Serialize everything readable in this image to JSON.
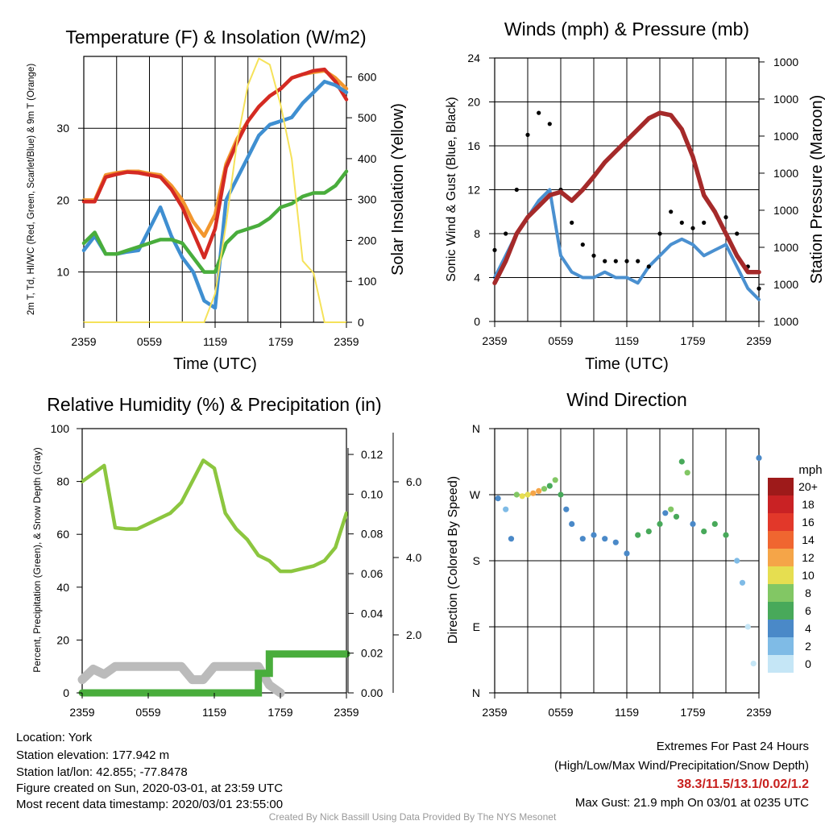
{
  "chart_data": [
    {
      "type": "line",
      "title": "Temperature (F) & Insolation (W/m2)",
      "xlabel": "Time (UTC)",
      "ylabel": "2m T, Td, HI/WC (Red, Green, Scarlet/Blue) & 9m T (Orange)",
      "y2label": "Solar Insolation (Yellow)",
      "x_ticks": [
        "2359",
        "0559",
        "1159",
        "1759",
        "2359"
      ],
      "ylim": [
        3,
        40
      ],
      "y_ticks": [
        10,
        20,
        30
      ],
      "y2lim": [
        0,
        650
      ],
      "y2_ticks": [
        0,
        100,
        200,
        300,
        400,
        500,
        600
      ],
      "x_hours": [
        0,
        1,
        2,
        3,
        4,
        5,
        6,
        7,
        8,
        9,
        10,
        11,
        12,
        13,
        14,
        15,
        16,
        17,
        18,
        19,
        20,
        21,
        22,
        23,
        24
      ],
      "series": [
        {
          "color": "#f2962e",
          "axis": "left",
          "values": [
            20,
            20,
            23.5,
            23.8,
            24,
            24,
            23.7,
            23.5,
            22,
            20,
            17,
            15,
            18,
            25,
            28.5,
            31,
            33,
            34.5,
            35.5,
            37,
            37.5,
            37.8,
            38,
            37,
            35.5
          ]
        },
        {
          "color": "#d42a23",
          "axis": "left",
          "values": [
            19.8,
            19.8,
            23.2,
            23.6,
            23.9,
            23.8,
            23.5,
            23.2,
            21.5,
            19,
            15.5,
            12,
            16,
            24.5,
            28,
            31,
            33,
            34.5,
            35.5,
            37,
            37.5,
            38,
            38.2,
            36.5,
            34
          ]
        },
        {
          "color": "#3f8fd1",
          "axis": "left",
          "values": [
            13,
            15,
            12.5,
            12.5,
            12.8,
            13,
            16,
            19,
            15,
            12,
            10,
            6,
            5,
            20,
            23,
            26,
            29,
            30.5,
            31,
            31.5,
            33.5,
            35,
            36.5,
            36,
            35
          ]
        },
        {
          "color": "#49ad3c",
          "axis": "left",
          "values": [
            14,
            15.5,
            12.5,
            12.5,
            13,
            13.5,
            14,
            14.5,
            14.5,
            14,
            12,
            10,
            10,
            14,
            15.5,
            16,
            16.5,
            17.5,
            19,
            19.5,
            20.5,
            21,
            21,
            22,
            24
          ]
        },
        {
          "color": "#f5e25a",
          "axis": "right",
          "values": [
            0,
            0,
            0,
            0,
            0,
            0,
            0,
            0,
            0,
            0,
            0,
            0,
            70,
            240,
            440,
            580,
            645,
            630,
            530,
            400,
            150,
            120,
            0,
            0,
            0
          ]
        }
      ]
    },
    {
      "type": "scatter",
      "title": "Winds (mph) & Pressure (mb)",
      "xlabel": "Time (UTC)",
      "ylabel": "Sonic Wind & Gust (Blue, Black)",
      "y2label": "Station Pressure (Maroon)",
      "x_ticks": [
        "2359",
        "0559",
        "1159",
        "1759",
        "2359"
      ],
      "ylim": [
        0,
        24
      ],
      "y_ticks": [
        0,
        4,
        8,
        12,
        16,
        20,
        24
      ],
      "y2_tick_labels": [
        "1000",
        "1000",
        "1000",
        "1000",
        "1000",
        "1000",
        "1000",
        "1000"
      ],
      "x_hours": [
        0,
        1,
        2,
        3,
        4,
        5,
        6,
        7,
        8,
        9,
        10,
        11,
        12,
        13,
        14,
        15,
        16,
        17,
        18,
        19,
        20,
        21,
        22,
        23,
        24
      ],
      "series": [
        {
          "color": "#4a90d0",
          "type": "line",
          "values": [
            4,
            6,
            8,
            9.5,
            11,
            12,
            6,
            4.5,
            4,
            4,
            4.5,
            4,
            4,
            3.5,
            5,
            6,
            7,
            7.5,
            7,
            6,
            6.5,
            7,
            5,
            3,
            2
          ]
        },
        {
          "color": "#000000",
          "type": "scatter",
          "values": [
            6.5,
            8,
            12,
            17,
            19,
            18,
            12,
            9,
            7,
            6,
            5.5,
            5.5,
            5.5,
            5.5,
            5,
            8,
            10,
            9,
            8.5,
            9,
            10,
            9.5,
            8,
            5,
            3
          ]
        },
        {
          "color": "#a52a2a",
          "type": "line",
          "values": [
            3.5,
            5.5,
            8,
            9.5,
            10.5,
            11.5,
            11.8,
            11,
            12,
            13.2,
            14.5,
            15.5,
            16.5,
            17.5,
            18.5,
            19,
            18.8,
            17.5,
            15,
            11.5,
            10,
            8,
            6,
            4.5,
            4.5
          ]
        }
      ]
    },
    {
      "type": "line",
      "title": "Relative Humidity (%) & Precipitation (in)",
      "ylabel": "Percent, Precipitation (Green), & Snow Depth (Gray)",
      "x_ticks": [
        "2359",
        "0559",
        "1159",
        "1759",
        "2359"
      ],
      "ylim": [
        0,
        100
      ],
      "y_ticks": [
        0,
        20,
        40,
        60,
        80,
        100
      ],
      "y2_ticks": [
        "0.00",
        "0.02",
        "0.04",
        "0.06",
        "0.08",
        "0.10",
        "0.12"
      ],
      "y3_ticks": [
        "2.0",
        "4.0",
        "6.0"
      ],
      "x_hours": [
        0,
        1,
        2,
        3,
        4,
        5,
        6,
        7,
        8,
        9,
        10,
        11,
        12,
        13,
        14,
        15,
        16,
        17,
        18,
        19,
        20,
        21,
        22,
        23,
        24
      ],
      "series": [
        {
          "color": "#8cc63f",
          "values": [
            80,
            83,
            86,
            62.5,
            62,
            62,
            64,
            66,
            68,
            72,
            80,
            88,
            85,
            68,
            62,
            58,
            52,
            50,
            46,
            46,
            47,
            48,
            50,
            55,
            68
          ]
        },
        {
          "color": "#bbbbbb",
          "values": [
            5,
            9,
            7,
            10,
            10,
            10,
            10,
            10,
            10,
            10,
            5,
            5,
            10,
            10,
            10,
            10,
            10,
            3,
            0,
            null,
            null,
            null,
            null,
            null,
            null
          ]
        },
        {
          "color": "#49ad3c",
          "values": [
            0,
            0,
            0,
            0,
            0,
            0,
            0,
            0,
            0,
            0,
            0,
            0,
            0,
            0,
            0,
            0,
            0.01,
            0.02,
            0.02,
            0.02,
            0.02,
            0.02,
            0.02,
            0.02,
            0.02
          ]
        }
      ]
    },
    {
      "type": "scatter",
      "title": "Wind Direction",
      "ylabel": "Direction (Colored By Speed)",
      "x_ticks": [
        "2359",
        "0559",
        "1159",
        "1759",
        "2359"
      ],
      "y_tick_labels": [
        "N",
        "E",
        "S",
        "W",
        "N"
      ],
      "ylim": [
        0,
        360
      ],
      "colorbar": {
        "title": "mph",
        "labels": [
          "20+",
          "18",
          "16",
          "14",
          "12",
          "10",
          "8",
          "6",
          "4",
          "2",
          "0"
        ],
        "colors": [
          "#9e1a1a",
          "#c92224",
          "#e2382a",
          "#f06630",
          "#f5a548",
          "#e6de50",
          "#82c764",
          "#48a95a",
          "#4a89c8",
          "#7fbbe6",
          "#c5e6f6"
        ]
      },
      "x_hours": [
        0.3,
        1,
        1.5,
        2,
        2.5,
        3,
        3.5,
        4,
        4.5,
        5,
        5.5,
        6,
        6.5,
        7,
        8,
        9,
        10,
        11,
        12,
        13,
        14,
        15,
        15.5,
        16,
        16.5,
        17,
        17.5,
        18,
        19,
        20,
        21,
        22,
        22.5,
        23,
        23.5,
        24
      ],
      "values": [
        265,
        250,
        210,
        270,
        268,
        270,
        272,
        275,
        278,
        282,
        290,
        270,
        250,
        230,
        210,
        215,
        210,
        205,
        190,
        215,
        220,
        230,
        245,
        250,
        240,
        315,
        300,
        230,
        220,
        230,
        215,
        180,
        150,
        90,
        40,
        320
      ],
      "speeds": [
        4,
        3,
        4,
        9,
        10,
        11,
        12,
        12,
        9,
        7,
        8,
        6,
        5,
        4,
        4,
        4,
        4,
        4,
        4,
        6,
        6,
        7,
        5,
        8,
        6,
        7,
        8,
        5,
        6,
        7,
        6,
        3,
        2,
        1,
        1,
        4
      ]
    }
  ],
  "footer": {
    "location": "Location: York",
    "elevation": "Station elevation: 177.942 m",
    "latlon": "Station lat/lon: 42.855; -77.8478",
    "created": "Figure created on Sun, 2020-03-01, at 23:59 UTC",
    "recent": "Most recent data timestamp: 2020/03/01 23:55:00",
    "extremes_title": "Extremes For Past 24 Hours",
    "extremes_desc": "(High/Low/Max Wind/Precipitation/Snow Depth)",
    "extremes_values": "38.3/11.5/13.1/0.02/1.2",
    "extremes_color": "#c8201e",
    "max_gust": "Max Gust: 21.9 mph On 03/01 at 0235 UTC",
    "credit": "Created By Nick Bassill Using Data Provided By The NYS Mesonet"
  }
}
